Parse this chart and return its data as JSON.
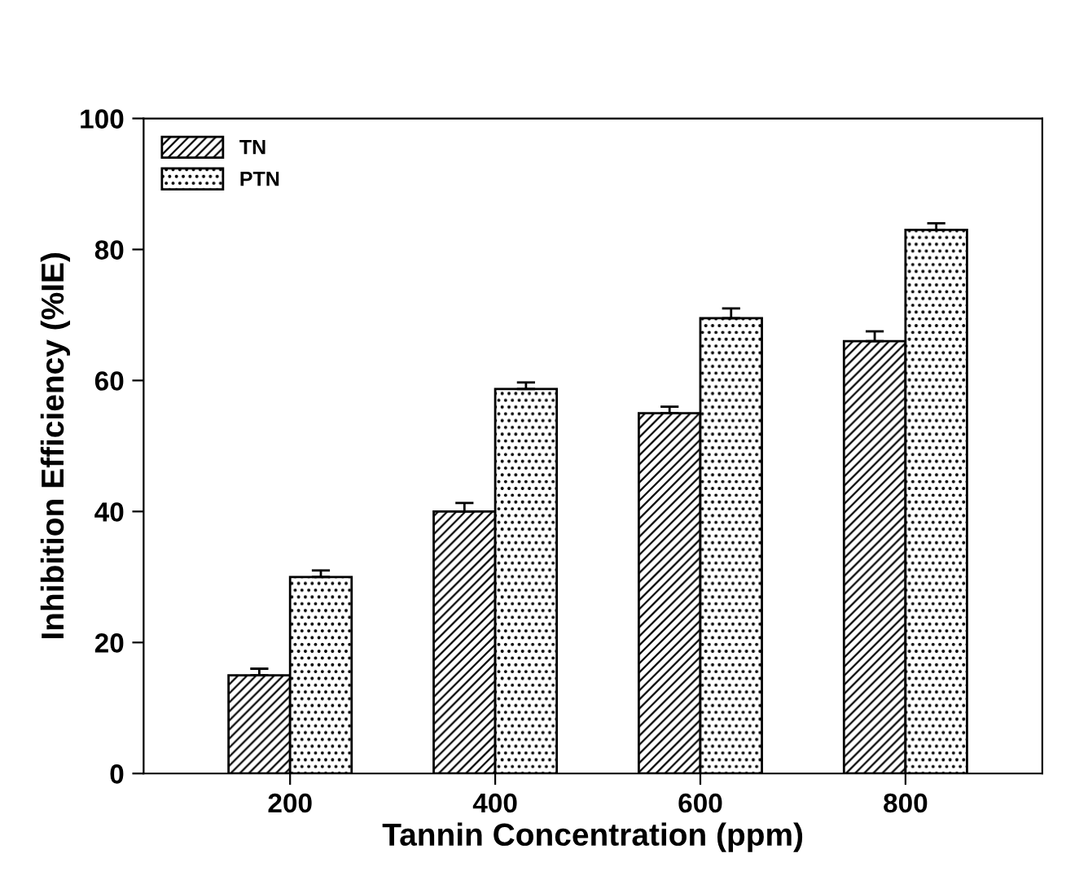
{
  "chart_data": {
    "type": "bar",
    "xlabel": "Tannin Concentration (ppm)",
    "ylabel": "Inhibition Efficiency (%IE)",
    "categories": [
      "200",
      "400",
      "600",
      "800"
    ],
    "series": [
      {
        "name": "TN",
        "color": "#000000",
        "values": [
          15,
          40,
          55,
          66
        ],
        "errors": [
          1,
          1.3,
          1,
          1.5
        ]
      },
      {
        "name": "PTN",
        "color": "#000000",
        "values": [
          30,
          58.7,
          69.5,
          83
        ],
        "errors": [
          1,
          1,
          1.5,
          1
        ]
      }
    ],
    "ylim": [
      0,
      100
    ],
    "yticks": [
      0,
      20,
      40,
      60,
      80,
      100
    ],
    "grid": false,
    "legend": "top left"
  }
}
